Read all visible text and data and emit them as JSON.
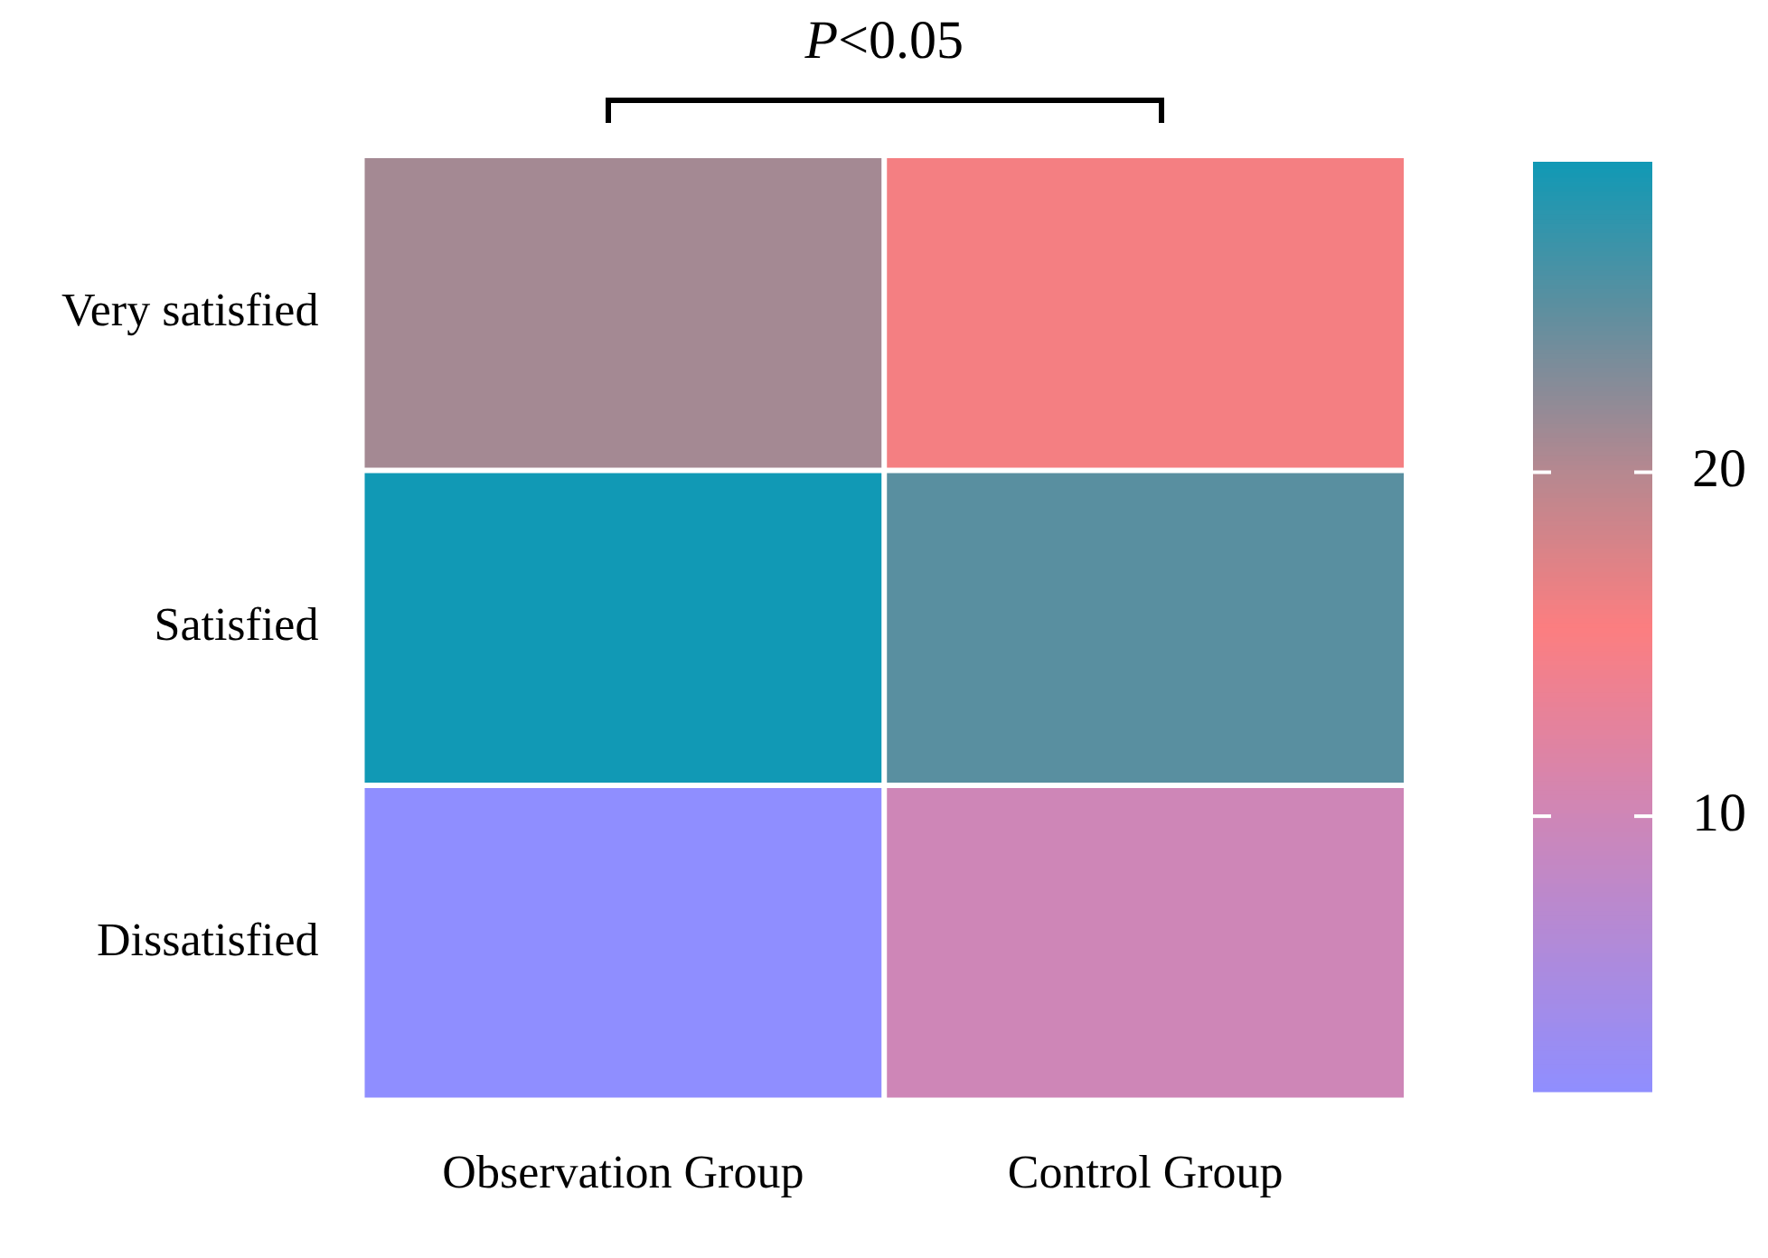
{
  "chart_data": {
    "type": "heatmap",
    "categories": [
      "Observation Group",
      "Control Group"
    ],
    "y_categories": [
      "Very satisfied",
      "Satisfied",
      "Dissatisfied"
    ],
    "cells": [
      [
        21,
        16
      ],
      [
        29,
        25
      ],
      [
        2,
        10
      ]
    ],
    "clim": [
      2,
      29
    ],
    "cticks": [
      10,
      20
    ],
    "annotations": [
      "P<0.05"
    ]
  }
}
